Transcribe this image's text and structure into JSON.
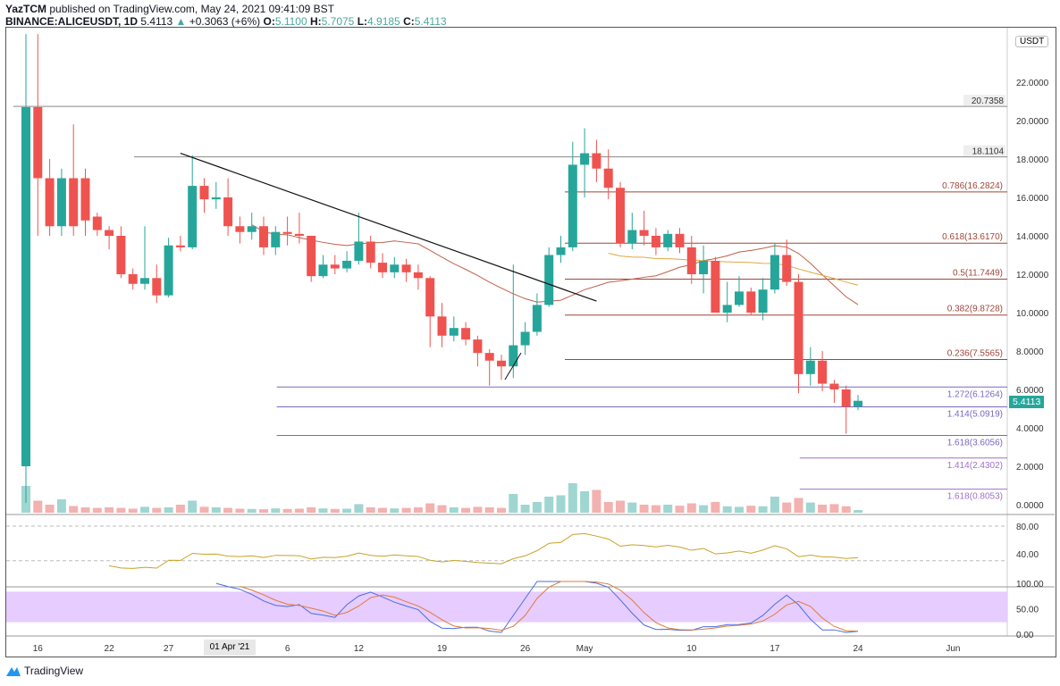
{
  "header": {
    "author": "YazTCM",
    "published": "published on TradingView.com, May 24, 2021 09:41:09 BST",
    "symbol": "BINANCE:ALICEUSDT, 1D",
    "last": "5.4113",
    "change": "+0.3063 (+6%)",
    "o_label": "O:",
    "o": "5.1100",
    "h_label": "H:",
    "h": "5.7075",
    "l_label": "L:",
    "l": "4.9185",
    "c_label": "C:",
    "c": "5.4113"
  },
  "currency": "USDT",
  "price_badge": "5.4113",
  "footer": "TradingView",
  "colors": {
    "up": "#26a69a",
    "down": "#ef5350",
    "fib_brown": "#a0463a",
    "fib_purple": "#7b68c0",
    "rsi": "#c9a227",
    "k": "#4a6ee0",
    "d": "#e07a3a"
  },
  "chart_data": {
    "type": "candlestick",
    "title": "BINANCE:ALICEUSDT 1D",
    "start_date": "2021-03-15",
    "ylim": [
      0,
      24
    ],
    "y_ticks": [
      "0.0000",
      "2.0000",
      "4.0000",
      "6.0000",
      "8.0000",
      "10.0000",
      "12.0000",
      "14.0000",
      "16.0000",
      "18.0000",
      "20.0000",
      "22.0000"
    ],
    "x_ticks": [
      {
        "label": "16",
        "day": 1
      },
      {
        "label": "22",
        "day": 7
      },
      {
        "label": "27",
        "day": 12
      },
      {
        "label": "01 Apr '21",
        "day": 17
      },
      {
        "label": "6",
        "day": 22
      },
      {
        "label": "12",
        "day": 28
      },
      {
        "label": "19",
        "day": 35
      },
      {
        "label": "26",
        "day": 42
      },
      {
        "label": "May",
        "day": 47
      },
      {
        "label": "10",
        "day": 56
      },
      {
        "label": "17",
        "day": 63
      },
      {
        "label": "24",
        "day": 70
      },
      {
        "label": "Jun",
        "day": 78
      }
    ],
    "ohlc": [
      [
        2,
        26,
        0.1,
        20.7
      ],
      [
        20.7,
        26,
        14,
        17
      ],
      [
        17,
        18,
        14,
        14.5
      ],
      [
        14.5,
        17.5,
        14,
        17
      ],
      [
        17,
        19.8,
        14,
        14.5
      ],
      [
        17,
        17.5,
        14,
        14.8
      ],
      [
        15,
        15.2,
        14,
        14.3
      ],
      [
        14.3,
        14.5,
        13.3,
        14
      ],
      [
        14,
        14.5,
        11.8,
        12
      ],
      [
        12,
        12.3,
        11.2,
        11.5
      ],
      [
        11.5,
        14.5,
        11.2,
        11.8
      ],
      [
        11.8,
        12.5,
        10.5,
        10.9
      ],
      [
        10.9,
        13.9,
        10.8,
        13.5
      ],
      [
        13.5,
        14,
        13.2,
        13.4
      ],
      [
        13.4,
        18.2,
        13.3,
        16.6
      ],
      [
        16.6,
        17,
        15.2,
        15.9
      ],
      [
        15.9,
        16.8,
        15.4,
        16
      ],
      [
        16,
        17,
        14,
        14.5
      ],
      [
        14.5,
        15,
        13.6,
        14.2
      ],
      [
        14.2,
        15.2,
        13.8,
        14.5
      ],
      [
        14.5,
        15,
        13,
        13.4
      ],
      [
        13.4,
        14.5,
        13,
        14.2
      ],
      [
        14.2,
        15,
        13.5,
        14.1
      ],
      [
        14.1,
        15.2,
        13.6,
        14
      ],
      [
        14,
        14,
        11.6,
        11.9
      ],
      [
        11.9,
        13,
        11.8,
        12.5
      ],
      [
        12.5,
        13,
        12,
        12.3
      ],
      [
        12.3,
        13.2,
        12.1,
        12.7
      ],
      [
        12.7,
        15.2,
        12.5,
        13.7
      ],
      [
        13.7,
        14,
        12.3,
        12.6
      ],
      [
        12.6,
        13.1,
        11.8,
        12.1
      ],
      [
        12.1,
        12.9,
        11.8,
        12.5
      ],
      [
        12.5,
        12.8,
        11.6,
        12.1
      ],
      [
        12.1,
        12.5,
        11.2,
        11.8
      ],
      [
        11.8,
        11.9,
        8.2,
        9.8
      ],
      [
        9.8,
        10.5,
        8.2,
        8.8
      ],
      [
        8.8,
        9.8,
        8.5,
        9.2
      ],
      [
        9.2,
        9.5,
        8.3,
        8.6
      ],
      [
        8.6,
        8.8,
        7.2,
        7.9
      ],
      [
        7.9,
        8.1,
        6.2,
        7.5
      ],
      [
        7.5,
        7.8,
        6.5,
        7.2
      ],
      [
        7.2,
        12.5,
        6.6,
        8.3
      ],
      [
        8.3,
        9.5,
        7.8,
        9
      ],
      [
        9,
        11,
        8.8,
        10.4
      ],
      [
        10.4,
        13.4,
        10.3,
        13
      ],
      [
        13,
        14,
        12.6,
        13.4
      ],
      [
        13.4,
        18.9,
        13.2,
        17.7
      ],
      [
        17.7,
        19.6,
        16,
        18.3
      ],
      [
        18.3,
        19,
        16.8,
        17.5
      ],
      [
        17.5,
        18.5,
        15.9,
        16.5
      ],
      [
        16.5,
        16.8,
        13.4,
        13.6
      ],
      [
        13.6,
        15.2,
        13.3,
        14.3
      ],
      [
        14.3,
        15.3,
        13.5,
        14
      ],
      [
        14,
        14.4,
        13,
        13.4
      ],
      [
        13.4,
        14.3,
        13.2,
        14.1
      ],
      [
        14.1,
        14.4,
        13.1,
        13.4
      ],
      [
        13.4,
        14,
        11.5,
        12
      ],
      [
        12,
        13.5,
        11,
        12.7
      ],
      [
        12.7,
        12.9,
        10,
        10
      ],
      [
        10,
        11.6,
        9.5,
        10.4
      ],
      [
        10.4,
        11.9,
        10.3,
        11.1
      ],
      [
        11.1,
        11.3,
        9.9,
        10
      ],
      [
        10,
        11.8,
        9.6,
        11.2
      ],
      [
        11.2,
        13.6,
        11,
        13
      ],
      [
        13,
        13.8,
        11.4,
        11.6
      ],
      [
        11.6,
        12,
        5.8,
        6.8
      ],
      [
        6.8,
        8.2,
        6.2,
        7.5
      ],
      [
        7.5,
        8,
        5.9,
        6.3
      ],
      [
        6.3,
        6.5,
        5.3,
        6
      ],
      [
        6,
        6.2,
        3.7,
        5.1
      ],
      [
        5.11,
        5.71,
        4.92,
        5.41
      ]
    ],
    "volume": [
      100,
      45,
      30,
      50,
      25,
      20,
      18,
      20,
      18,
      15,
      22,
      18,
      20,
      30,
      45,
      22,
      20,
      18,
      15,
      14,
      13,
      16,
      14,
      15,
      20,
      16,
      14,
      15,
      32,
      20,
      18,
      16,
      18,
      20,
      35,
      28,
      20,
      18,
      22,
      20,
      18,
      70,
      30,
      40,
      60,
      65,
      110,
      80,
      85,
      40,
      45,
      38,
      30,
      28,
      30,
      26,
      35,
      28,
      40,
      24,
      22,
      26,
      24,
      60,
      38,
      55,
      38,
      30,
      32,
      24,
      10
    ],
    "rsi_ticks": [
      "80.00",
      "40.00"
    ],
    "stoch_ticks": [
      "100.00",
      "50.00",
      "0.00"
    ],
    "horizontal_levels": [
      {
        "value": 20.7358,
        "label": "20.7358"
      },
      {
        "value": 18.1104,
        "label": "18.1104"
      }
    ],
    "fib_levels": [
      {
        "ratio": "0.786",
        "value": 16.2824,
        "label": "0.786(16.2824)",
        "color": "brown"
      },
      {
        "ratio": "0.618",
        "value": 13.617,
        "label": "0.618(13.6170)",
        "color": "brown"
      },
      {
        "ratio": "0.5",
        "value": 11.7449,
        "label": "0.5(11.7449)",
        "color": "brown"
      },
      {
        "ratio": "0.382",
        "value": 9.8728,
        "label": "0.382(9.8728)",
        "color": "brown"
      },
      {
        "ratio": "0.236",
        "value": 7.5565,
        "label": "0.236(7.5565)",
        "color": "brown"
      },
      {
        "ratio": "1.272",
        "value": 6.1264,
        "label": "1.272(6.1264)",
        "color": "purple",
        "from_day": 22
      },
      {
        "ratio": "1.414",
        "value": 5.0919,
        "label": "1.414(5.0919)",
        "color": "purple",
        "from_day": 22
      },
      {
        "ratio": "1.618",
        "value": 3.6056,
        "label": "1.618(3.6056)",
        "color": "purple",
        "from_day": 22
      },
      {
        "ratio": "1.414",
        "value": 2.4302,
        "label": "1.414(2.4302)",
        "color": "violet",
        "from_day": 66
      },
      {
        "ratio": "1.618",
        "value": 0.8053,
        "label": "1.618(0.8053)",
        "color": "violet",
        "from_day": 66
      }
    ],
    "trendline": {
      "from": {
        "day": 13,
        "price": 18.3
      },
      "to": {
        "day": 48,
        "price": 10.6
      }
    }
  }
}
